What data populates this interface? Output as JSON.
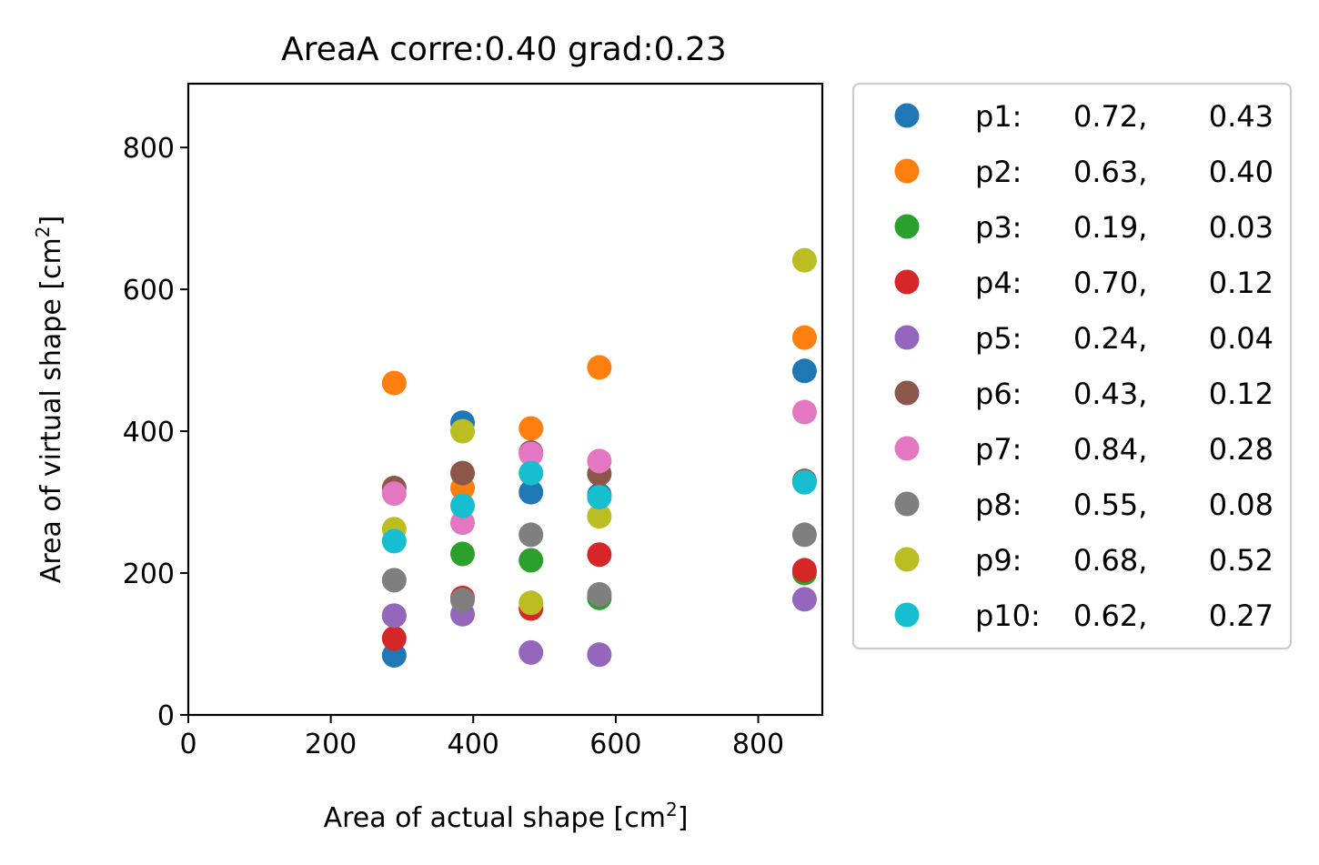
{
  "chart_data": {
    "type": "scatter",
    "title": "AreaA corre:0.40 grad:0.23",
    "xlabel": "Area of actual shape [cm",
    "xlabel_sup": "2",
    "xlabel_end": "]",
    "ylabel": "Area of virtual shape [cm",
    "ylabel_sup": "2",
    "ylabel_end": "]",
    "xlim": [
      0,
      890
    ],
    "ylim": [
      0,
      890
    ],
    "xticks": [
      0,
      200,
      400,
      600,
      800
    ],
    "yticks": [
      0,
      200,
      400,
      600,
      800
    ],
    "grid": false,
    "legend_placement": "outside right",
    "series": [
      {
        "name": "p1:",
        "stat1": "0.72,",
        "stat2": "0.43",
        "color": "#1f77b4",
        "points": [
          [
            289,
            84
          ],
          [
            385,
            412
          ],
          [
            481,
            314
          ],
          [
            577,
            310
          ],
          [
            865,
            485
          ]
        ]
      },
      {
        "name": "p2:",
        "stat1": "0.63,",
        "stat2": "0.40",
        "color": "#ff7f0e",
        "points": [
          [
            289,
            468
          ],
          [
            385,
            320
          ],
          [
            481,
            404
          ],
          [
            577,
            490
          ],
          [
            865,
            532
          ]
        ]
      },
      {
        "name": "p3:",
        "stat1": "0.19,",
        "stat2": "0.03",
        "color": "#2ca02c",
        "points": [
          [
            289,
            140
          ],
          [
            385,
            227
          ],
          [
            481,
            218
          ],
          [
            577,
            165
          ],
          [
            865,
            200
          ]
        ]
      },
      {
        "name": "p4:",
        "stat1": "0.70,",
        "stat2": "0.12",
        "color": "#d62728",
        "points": [
          [
            289,
            108
          ],
          [
            385,
            165
          ],
          [
            481,
            150
          ],
          [
            577,
            226
          ],
          [
            865,
            204
          ]
        ]
      },
      {
        "name": "p5:",
        "stat1": "0.24,",
        "stat2": "0.04",
        "color": "#9467bd",
        "points": [
          [
            289,
            140
          ],
          [
            385,
            142
          ],
          [
            481,
            88
          ],
          [
            577,
            85
          ],
          [
            865,
            163
          ]
        ]
      },
      {
        "name": "p6:",
        "stat1": "0.43,",
        "stat2": "0.12",
        "color": "#8c564b",
        "points": [
          [
            289,
            320
          ],
          [
            385,
            341
          ],
          [
            481,
            370
          ],
          [
            577,
            340
          ],
          [
            865,
            330
          ]
        ]
      },
      {
        "name": "p7:",
        "stat1": "0.84,",
        "stat2": "0.28",
        "color": "#e377c2",
        "points": [
          [
            289,
            312
          ],
          [
            385,
            271
          ],
          [
            481,
            368
          ],
          [
            577,
            358
          ],
          [
            865,
            427
          ]
        ]
      },
      {
        "name": "p8:",
        "stat1": "0.55,",
        "stat2": "0.08",
        "color": "#7f7f7f",
        "points": [
          [
            289,
            190
          ],
          [
            385,
            162
          ],
          [
            481,
            254
          ],
          [
            577,
            170
          ],
          [
            865,
            254
          ]
        ]
      },
      {
        "name": "p9:",
        "stat1": "0.68,",
        "stat2": "0.52",
        "color": "#bcbd22",
        "points": [
          [
            289,
            262
          ],
          [
            385,
            400
          ],
          [
            481,
            158
          ],
          [
            577,
            280
          ],
          [
            865,
            641
          ]
        ]
      },
      {
        "name": "p10:",
        "stat1": "0.62,",
        "stat2": "0.27",
        "color": "#17becf",
        "points": [
          [
            289,
            245
          ],
          [
            385,
            295
          ],
          [
            481,
            341
          ],
          [
            577,
            307
          ],
          [
            865,
            328
          ]
        ]
      }
    ]
  }
}
